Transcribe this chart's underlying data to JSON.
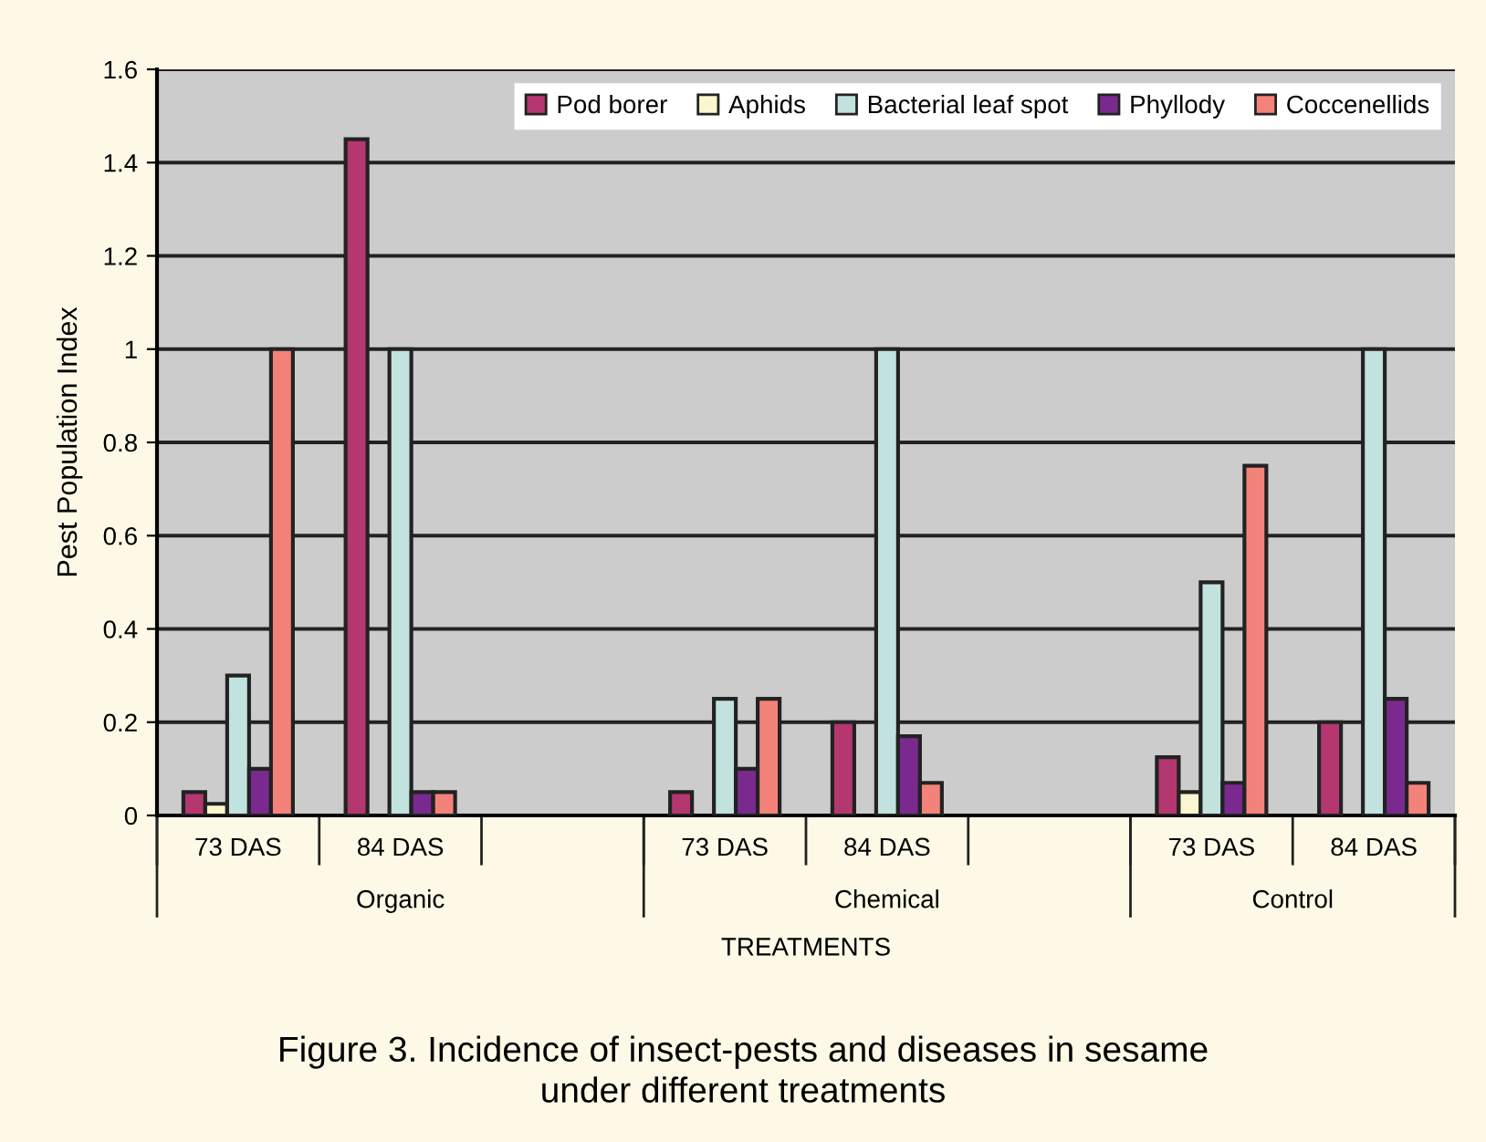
{
  "chart_data": {
    "type": "bar",
    "xlabel": "TREATMENTS",
    "ylabel": "Pest Population Index",
    "categories": [
      "73 DAS",
      "84 DAS",
      null,
      "73 DAS",
      "84 DAS",
      null,
      "73 DAS",
      "84 DAS"
    ],
    "series": [
      {
        "name": "Pod borer",
        "color": "#b5376f",
        "values": [
          0.05,
          1.45,
          null,
          0.05,
          0.2,
          null,
          0.125,
          0.2
        ]
      },
      {
        "name": "Aphids",
        "color": "#fbf6cf",
        "values": [
          0.025,
          null,
          null,
          null,
          null,
          null,
          0.05,
          null
        ]
      },
      {
        "name": "Bacterial leaf spot",
        "color": "#c2e2df",
        "values": [
          0.3,
          1.0,
          null,
          0.25,
          1.0,
          null,
          0.5,
          1.0
        ]
      },
      {
        "name": "Phyllody",
        "color": "#7a2a8e",
        "values": [
          0.1,
          0.05,
          null,
          0.1,
          0.17,
          null,
          0.07,
          0.25
        ]
      },
      {
        "name": "Coccenellids",
        "color": "#f3837a",
        "values": [
          1.0,
          0.05,
          null,
          0.25,
          0.07,
          null,
          0.75,
          0.07
        ]
      }
    ],
    "ylim": [
      0,
      1.6
    ],
    "yticks": [
      0,
      0.2,
      0.4,
      0.6,
      0.8,
      1,
      1.2,
      1.4,
      1.6
    ],
    "grid": "y",
    "legend": "top right",
    "annotations": [
      "Organic",
      "Chemical",
      "Control",
      "Figure 3. Incidence of insect-pests and diseases in sesame\nunder different treatments"
    ]
  }
}
